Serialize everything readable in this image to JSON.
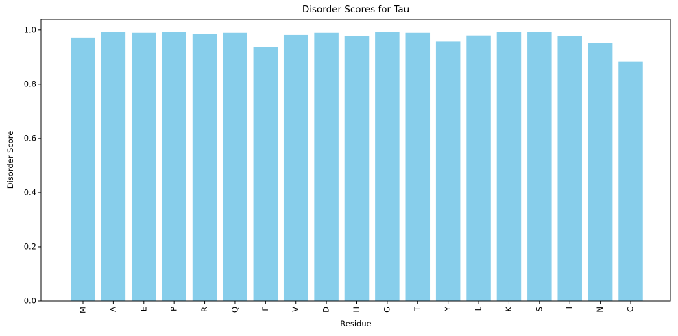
{
  "chart_data": {
    "type": "bar",
    "title": "Disorder Scores for Tau",
    "xlabel": "Residue",
    "ylabel": "Disorder Score",
    "categories": [
      "M",
      "A",
      "E",
      "P",
      "R",
      "Q",
      "F",
      "V",
      "D",
      "H",
      "G",
      "T",
      "Y",
      "L",
      "K",
      "S",
      "I",
      "N",
      "C"
    ],
    "values": [
      0.972,
      0.993,
      0.99,
      0.993,
      0.985,
      0.99,
      0.938,
      0.982,
      0.99,
      0.977,
      0.993,
      0.99,
      0.958,
      0.98,
      0.993,
      0.993,
      0.977,
      0.953,
      0.884
    ],
    "ylim": [
      0,
      1.04
    ],
    "yticks": [
      "0.0",
      "0.2",
      "0.4",
      "0.6",
      "0.8",
      "1.0"
    ],
    "ytick_values": [
      0.0,
      0.2,
      0.4,
      0.6,
      0.8,
      1.0
    ],
    "grid": false,
    "bar_color": "#87ceeb"
  }
}
